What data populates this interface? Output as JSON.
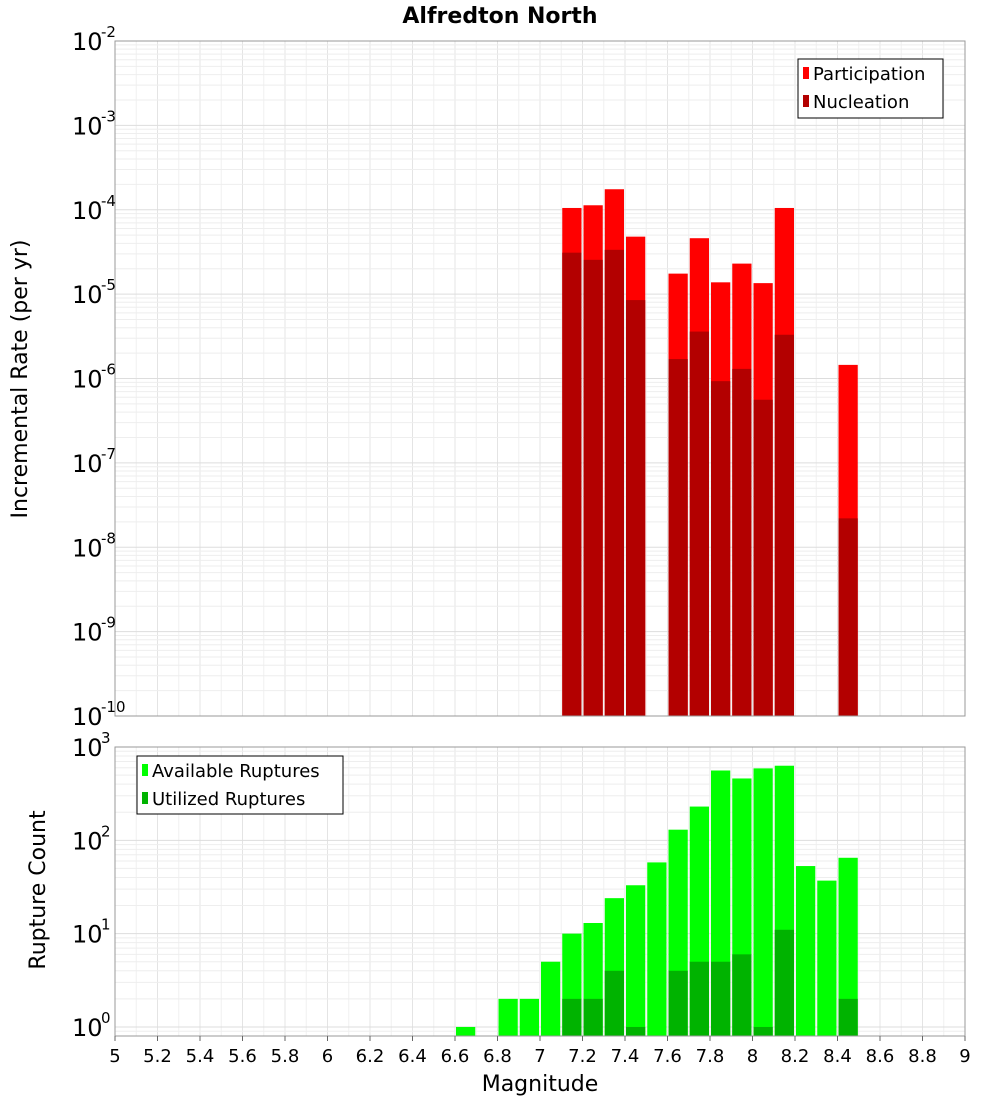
{
  "chart_data": [
    {
      "type": "bar",
      "title": "Alfredton North",
      "xlabel": "",
      "ylabel": "Incremental Rate (per yr)",
      "xlim": [
        5,
        9
      ],
      "ylim": [
        1e-10,
        0.01
      ],
      "yscale": "log",
      "grid": true,
      "legend_position": "top-right",
      "x": [
        7.15,
        7.25,
        7.35,
        7.45,
        7.65,
        7.75,
        7.85,
        7.95,
        8.05,
        8.15,
        8.45
      ],
      "series": [
        {
          "name": "Participation",
          "color": "#ff0000",
          "values": [
            0.000105,
            0.000113,
            0.000175,
            4.8e-05,
            1.75e-05,
            4.6e-05,
            1.38e-05,
            2.3e-05,
            1.35e-05,
            0.000105,
            1.45e-06
          ]
        },
        {
          "name": "Nucleation",
          "color": "#b30000",
          "values": [
            3.1e-05,
            2.55e-05,
            3.35e-05,
            8.5e-06,
            1.7e-06,
            3.6e-06,
            9.3e-07,
            1.3e-06,
            5.6e-07,
            3.3e-06,
            2.2e-08
          ]
        }
      ],
      "yticks": [
        {
          "base": "10",
          "exp": "-2"
        },
        {
          "base": "10",
          "exp": "-3"
        },
        {
          "base": "10",
          "exp": "-4"
        },
        {
          "base": "10",
          "exp": "-5"
        },
        {
          "base": "10",
          "exp": "-6"
        },
        {
          "base": "10",
          "exp": "-7"
        },
        {
          "base": "10",
          "exp": "-8"
        },
        {
          "base": "10",
          "exp": "-9"
        },
        {
          "base": "10",
          "exp": "-10"
        }
      ]
    },
    {
      "type": "bar",
      "title": "",
      "xlabel": "Magnitude",
      "ylabel": "Rupture Count",
      "xlim": [
        5,
        9
      ],
      "ylim": [
        0.8,
        1000
      ],
      "yscale": "log",
      "grid": true,
      "legend_position": "top-left",
      "x": [
        6.65,
        6.85,
        6.95,
        7.05,
        7.15,
        7.25,
        7.35,
        7.45,
        7.55,
        7.65,
        7.75,
        7.85,
        7.95,
        8.05,
        8.15,
        8.25,
        8.35,
        8.45
      ],
      "series": [
        {
          "name": "Available Ruptures",
          "color": "#00ff00",
          "values": [
            1,
            2,
            2,
            5,
            10,
            13,
            24,
            33,
            58,
            130,
            230,
            560,
            460,
            590,
            630,
            53,
            37,
            65
          ]
        },
        {
          "name": "Utilized Ruptures",
          "color": "#00b300",
          "values": [
            0,
            0,
            0,
            0,
            2,
            2,
            4,
            1,
            0,
            4,
            5,
            5,
            6,
            1,
            11,
            0,
            0,
            2
          ]
        }
      ],
      "yticks": [
        {
          "base": "10",
          "exp": "3"
        },
        {
          "base": "10",
          "exp": "2"
        },
        {
          "base": "10",
          "exp": "1"
        },
        {
          "base": "10",
          "exp": "0"
        }
      ],
      "xticks": [
        "5",
        "5.2",
        "5.4",
        "5.6",
        "5.8",
        "6",
        "6.2",
        "6.4",
        "6.6",
        "6.8",
        "7",
        "7.2",
        "7.4",
        "7.6",
        "7.8",
        "8",
        "8.2",
        "8.4",
        "8.6",
        "8.8",
        "9"
      ]
    }
  ]
}
